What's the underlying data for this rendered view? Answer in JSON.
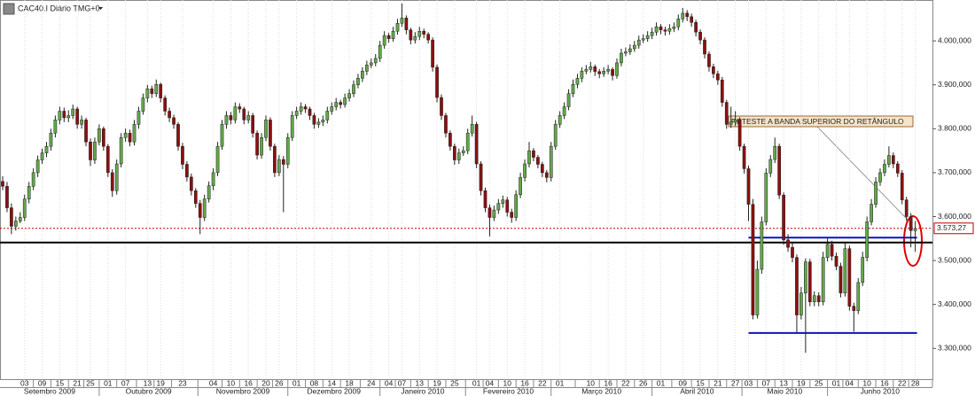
{
  "chart_data": {
    "type": "candlestick",
    "title": "CAC40.I Diário TMG+0",
    "colors": {
      "up": "#62a84a",
      "down": "#8b1010",
      "wick": "#222222"
    },
    "grid": true,
    "ylim": [
      3230,
      4093
    ],
    "yticks": [
      {
        "value": 3300,
        "label": "3.300,000"
      },
      {
        "value": 3400,
        "label": "3.400,000"
      },
      {
        "value": 3500,
        "label": "3.500,000"
      },
      {
        "value": 3600,
        "label": "3.600,000"
      },
      {
        "value": 3700,
        "label": "3.700,000"
      },
      {
        "value": 3800,
        "label": "3.800,000"
      },
      {
        "value": 3900,
        "label": "3.900,000"
      },
      {
        "value": 4000,
        "label": "4.000,000"
      }
    ],
    "last_price": {
      "value": 3573.27,
      "label": "3.573,27"
    },
    "levels": [
      {
        "value": 3573.27,
        "color": "#c00000",
        "style": "dotted",
        "extent": "full"
      },
      {
        "value": 3541,
        "color": "#000000",
        "style": "solid",
        "extent": "full"
      },
      {
        "value": 3552,
        "color": "#1010c0",
        "style": "solid",
        "extent": "box"
      },
      {
        "value": 3335,
        "color": "#1010c0",
        "style": "solid",
        "extent": "box"
      }
    ],
    "annotation": "RETESTE A BANDA SUPERIOR DO RETÂNGULO",
    "months": [
      "Setembro 2009",
      "Outubro 2009",
      "Novembro 2009",
      "Dezembro 2009",
      "Janeiro 2010",
      "Fevereiro 2010",
      "Março 2010",
      "Abril 2010",
      "Maio 2010",
      "Junho 2010"
    ],
    "categories": [
      null,
      null,
      null,
      null,
      null,
      "03",
      null,
      null,
      null,
      "09",
      null,
      null,
      null,
      "15",
      null,
      null,
      null,
      "21",
      null,
      null,
      "25",
      null,
      null,
      null,
      "01",
      null,
      null,
      null,
      "07",
      null,
      null,
      null,
      null,
      "13",
      null,
      null,
      "19",
      null,
      null,
      null,
      null,
      "23",
      null,
      null,
      null,
      null,
      null,
      null,
      "04",
      null,
      null,
      null,
      "10",
      null,
      null,
      null,
      "16",
      null,
      null,
      null,
      "20",
      null,
      null,
      "26",
      null,
      null,
      null,
      "01",
      null,
      null,
      null,
      "08",
      null,
      null,
      null,
      "14",
      null,
      null,
      null,
      "18",
      null,
      null,
      null,
      null,
      "24",
      null,
      null,
      null,
      "04",
      null,
      null,
      "07",
      null,
      null,
      null,
      "13",
      null,
      null,
      null,
      "19",
      null,
      null,
      null,
      "25",
      null,
      null,
      null,
      null,
      "01",
      null,
      null,
      "04",
      null,
      null,
      null,
      "10",
      null,
      null,
      null,
      "16",
      null,
      null,
      null,
      "22",
      null,
      null,
      null,
      "01",
      null,
      null,
      null,
      null,
      null,
      null,
      "10",
      null,
      null,
      null,
      "16",
      null,
      null,
      null,
      "22",
      null,
      null,
      null,
      "26",
      null,
      null,
      null,
      "01",
      null,
      null,
      null,
      null,
      "09",
      null,
      null,
      null,
      "15",
      null,
      null,
      null,
      "21",
      null,
      null,
      null,
      "27",
      null,
      null,
      "03",
      null,
      null,
      null,
      "07",
      null,
      null,
      null,
      "13",
      null,
      null,
      null,
      "19",
      null,
      null,
      null,
      "25",
      null,
      null,
      null,
      "01",
      null,
      null,
      "04",
      null,
      null,
      null,
      "10",
      null,
      null,
      null,
      "16",
      null,
      null,
      null,
      "22",
      null,
      null,
      "28"
    ],
    "ohlc": [
      [
        3680,
        3692,
        3660,
        3669
      ],
      [
        3669,
        3679,
        3610,
        3620
      ],
      [
        3620,
        3630,
        3560,
        3578
      ],
      [
        3578,
        3600,
        3568,
        3590
      ],
      [
        3590,
        3610,
        3585,
        3598
      ],
      [
        3598,
        3650,
        3590,
        3640
      ],
      [
        3640,
        3679,
        3630,
        3669
      ],
      [
        3669,
        3710,
        3660,
        3700
      ],
      [
        3700,
        3739,
        3690,
        3729
      ],
      [
        3729,
        3755,
        3720,
        3745
      ],
      [
        3745,
        3770,
        3735,
        3760
      ],
      [
        3760,
        3800,
        3750,
        3790
      ],
      [
        3790,
        3830,
        3780,
        3820
      ],
      [
        3820,
        3850,
        3810,
        3840
      ],
      [
        3840,
        3848,
        3815,
        3825
      ],
      [
        3825,
        3842,
        3815,
        3830
      ],
      [
        3830,
        3855,
        3822,
        3845
      ],
      [
        3845,
        3850,
        3800,
        3810
      ],
      [
        3810,
        3830,
        3800,
        3820
      ],
      [
        3820,
        3825,
        3760,
        3770
      ],
      [
        3770,
        3778,
        3715,
        3729
      ],
      [
        3729,
        3780,
        3720,
        3770
      ],
      [
        3770,
        3810,
        3762,
        3800
      ],
      [
        3800,
        3805,
        3750,
        3760
      ],
      [
        3760,
        3765,
        3690,
        3700
      ],
      [
        3700,
        3708,
        3645,
        3659
      ],
      [
        3659,
        3730,
        3650,
        3720
      ],
      [
        3720,
        3790,
        3712,
        3780
      ],
      [
        3780,
        3800,
        3770,
        3790
      ],
      [
        3790,
        3798,
        3760,
        3770
      ],
      [
        3770,
        3820,
        3762,
        3810
      ],
      [
        3810,
        3850,
        3800,
        3840
      ],
      [
        3840,
        3880,
        3832,
        3870
      ],
      [
        3870,
        3900,
        3860,
        3891
      ],
      [
        3891,
        3898,
        3870,
        3880
      ],
      [
        3880,
        3912,
        3872,
        3901
      ],
      [
        3901,
        3905,
        3860,
        3870
      ],
      [
        3870,
        3876,
        3830,
        3840
      ],
      [
        3840,
        3848,
        3815,
        3825
      ],
      [
        3825,
        3832,
        3800,
        3810
      ],
      [
        3810,
        3815,
        3750,
        3760
      ],
      [
        3760,
        3768,
        3708,
        3719
      ],
      [
        3719,
        3726,
        3680,
        3690
      ],
      [
        3690,
        3698,
        3648,
        3659
      ],
      [
        3659,
        3665,
        3620,
        3630
      ],
      [
        3630,
        3638,
        3560,
        3598
      ],
      [
        3598,
        3650,
        3590,
        3640
      ],
      [
        3640,
        3680,
        3632,
        3670
      ],
      [
        3670,
        3710,
        3660,
        3700
      ],
      [
        3700,
        3770,
        3692,
        3760
      ],
      [
        3760,
        3820,
        3752,
        3810
      ],
      [
        3810,
        3840,
        3800,
        3830
      ],
      [
        3830,
        3838,
        3810,
        3820
      ],
      [
        3820,
        3860,
        3812,
        3850
      ],
      [
        3850,
        3858,
        3836,
        3845
      ],
      [
        3845,
        3850,
        3810,
        3820
      ],
      [
        3820,
        3840,
        3812,
        3830
      ],
      [
        3830,
        3836,
        3780,
        3790
      ],
      [
        3790,
        3796,
        3730,
        3740
      ],
      [
        3740,
        3790,
        3732,
        3780
      ],
      [
        3780,
        3830,
        3772,
        3820
      ],
      [
        3820,
        3826,
        3750,
        3760
      ],
      [
        3760,
        3766,
        3690,
        3700
      ],
      [
        3700,
        3740,
        3692,
        3730
      ],
      [
        3730,
        3738,
        3610,
        3719
      ],
      [
        3719,
        3790,
        3710,
        3780
      ],
      [
        3780,
        3840,
        3772,
        3830
      ],
      [
        3830,
        3850,
        3822,
        3840
      ],
      [
        3840,
        3860,
        3832,
        3850
      ],
      [
        3850,
        3856,
        3836,
        3845
      ],
      [
        3845,
        3850,
        3820,
        3830
      ],
      [
        3830,
        3836,
        3800,
        3810
      ],
      [
        3810,
        3824,
        3802,
        3815
      ],
      [
        3815,
        3830,
        3806,
        3820
      ],
      [
        3820,
        3850,
        3812,
        3840
      ],
      [
        3840,
        3860,
        3832,
        3850
      ],
      [
        3850,
        3870,
        3842,
        3860
      ],
      [
        3860,
        3866,
        3846,
        3855
      ],
      [
        3855,
        3880,
        3848,
        3870
      ],
      [
        3870,
        3890,
        3862,
        3880
      ],
      [
        3880,
        3910,
        3872,
        3900
      ],
      [
        3900,
        3925,
        3892,
        3915
      ],
      [
        3915,
        3940,
        3906,
        3931
      ],
      [
        3931,
        3955,
        3922,
        3945
      ],
      [
        3945,
        3960,
        3938,
        3950
      ],
      [
        3950,
        3970,
        3942,
        3960
      ],
      [
        3960,
        4000,
        3952,
        3990
      ],
      [
        3990,
        4022,
        3982,
        4012
      ],
      [
        4012,
        4018,
        3996,
        4005
      ],
      [
        4005,
        4032,
        3998,
        4022
      ],
      [
        4022,
        4050,
        4014,
        4040
      ],
      [
        4040,
        4085,
        4032,
        4052
      ],
      [
        4052,
        4058,
        4015,
        4025
      ],
      [
        4025,
        4030,
        3992,
        4002
      ],
      [
        4002,
        4020,
        3994,
        4010
      ],
      [
        4010,
        4032,
        4002,
        4022
      ],
      [
        4022,
        4028,
        4006,
        4015
      ],
      [
        4015,
        4020,
        3994,
        4002
      ],
      [
        4002,
        4008,
        3930,
        3940
      ],
      [
        3940,
        3946,
        3860,
        3871
      ],
      [
        3871,
        3878,
        3820,
        3830
      ],
      [
        3830,
        3836,
        3780,
        3790
      ],
      [
        3790,
        3796,
        3750,
        3760
      ],
      [
        3760,
        3766,
        3718,
        3729
      ],
      [
        3729,
        3755,
        3720,
        3745
      ],
      [
        3745,
        3760,
        3738,
        3750
      ],
      [
        3750,
        3800,
        3742,
        3790
      ],
      [
        3790,
        3830,
        3782,
        3810
      ],
      [
        3810,
        3816,
        3710,
        3720
      ],
      [
        3720,
        3726,
        3648,
        3659
      ],
      [
        3659,
        3666,
        3610,
        3620
      ],
      [
        3620,
        3628,
        3555,
        3598
      ],
      [
        3598,
        3625,
        3590,
        3615
      ],
      [
        3615,
        3640,
        3606,
        3630
      ],
      [
        3630,
        3648,
        3620,
        3638
      ],
      [
        3638,
        3645,
        3600,
        3610
      ],
      [
        3610,
        3618,
        3586,
        3598
      ],
      [
        3598,
        3660,
        3590,
        3650
      ],
      [
        3650,
        3700,
        3642,
        3689
      ],
      [
        3689,
        3730,
        3680,
        3720
      ],
      [
        3720,
        3770,
        3712,
        3750
      ],
      [
        3750,
        3756,
        3726,
        3735
      ],
      [
        3735,
        3740,
        3710,
        3719
      ],
      [
        3719,
        3725,
        3690,
        3700
      ],
      [
        3700,
        3706,
        3678,
        3689
      ],
      [
        3689,
        3770,
        3680,
        3760
      ],
      [
        3760,
        3820,
        3752,
        3810
      ],
      [
        3810,
        3840,
        3802,
        3830
      ],
      [
        3830,
        3860,
        3822,
        3850
      ],
      [
        3850,
        3890,
        3842,
        3880
      ],
      [
        3880,
        3912,
        3872,
        3901
      ],
      [
        3901,
        3925,
        3892,
        3915
      ],
      [
        3915,
        3940,
        3906,
        3931
      ],
      [
        3931,
        3945,
        3924,
        3935
      ],
      [
        3935,
        3952,
        3928,
        3941
      ],
      [
        3941,
        3946,
        3920,
        3930
      ],
      [
        3930,
        3936,
        3915,
        3925
      ],
      [
        3925,
        3940,
        3918,
        3931
      ],
      [
        3931,
        3945,
        3924,
        3935
      ],
      [
        3935,
        3940,
        3910,
        3921
      ],
      [
        3921,
        3960,
        3914,
        3950
      ],
      [
        3950,
        3982,
        3942,
        3972
      ],
      [
        3972,
        3985,
        3965,
        3975
      ],
      [
        3975,
        3992,
        3968,
        3982
      ],
      [
        3982,
        4000,
        3975,
        3990
      ],
      [
        3990,
        4012,
        3982,
        4002
      ],
      [
        4002,
        4015,
        3995,
        4005
      ],
      [
        4005,
        4022,
        3998,
        4012
      ],
      [
        4012,
        4030,
        4004,
        4020
      ],
      [
        4020,
        4042,
        4012,
        4032
      ],
      [
        4032,
        4038,
        4015,
        4025
      ],
      [
        4025,
        4032,
        4012,
        4022
      ],
      [
        4022,
        4038,
        4014,
        4028
      ],
      [
        4028,
        4042,
        4020,
        4032
      ],
      [
        4032,
        4060,
        4024,
        4050
      ],
      [
        4050,
        4075,
        4042,
        4063
      ],
      [
        4063,
        4070,
        4045,
        4055
      ],
      [
        4055,
        4062,
        4032,
        4042
      ],
      [
        4042,
        4048,
        4010,
        4020
      ],
      [
        4020,
        4026,
        3992,
        4002
      ],
      [
        4002,
        4008,
        3960,
        3970
      ],
      [
        3970,
        3976,
        3930,
        3941
      ],
      [
        3941,
        3948,
        3915,
        3925
      ],
      [
        3925,
        3932,
        3900,
        3911
      ],
      [
        3911,
        3918,
        3850,
        3860
      ],
      [
        3860,
        3866,
        3800,
        3810
      ],
      [
        3810,
        3850,
        3802,
        3815
      ],
      [
        3815,
        3840,
        3806,
        3820
      ],
      [
        3820,
        3826,
        3750,
        3760
      ],
      [
        3760,
        3766,
        3698,
        3709
      ],
      [
        3709,
        3716,
        3590,
        3628
      ],
      [
        3628,
        3640,
        3366,
        3376
      ],
      [
        3376,
        3500,
        3368,
        3480
      ],
      [
        3480,
        3600,
        3470,
        3588
      ],
      [
        3588,
        3710,
        3580,
        3699
      ],
      [
        3699,
        3740,
        3690,
        3730
      ],
      [
        3730,
        3780,
        3722,
        3760
      ],
      [
        3760,
        3766,
        3640,
        3649
      ],
      [
        3649,
        3655,
        3536,
        3547
      ],
      [
        3547,
        3560,
        3520,
        3530
      ],
      [
        3530,
        3540,
        3496,
        3507
      ],
      [
        3507,
        3514,
        3336,
        3376
      ],
      [
        3376,
        3440,
        3366,
        3426
      ],
      [
        3426,
        3505,
        3290,
        3497
      ],
      [
        3497,
        3504,
        3396,
        3406
      ],
      [
        3406,
        3430,
        3396,
        3420
      ],
      [
        3420,
        3428,
        3396,
        3406
      ],
      [
        3406,
        3520,
        3398,
        3507
      ],
      [
        3507,
        3550,
        3498,
        3537
      ],
      [
        3537,
        3545,
        3500,
        3510
      ],
      [
        3510,
        3518,
        3478,
        3487
      ],
      [
        3487,
        3495,
        3416,
        3426
      ],
      [
        3426,
        3540,
        3418,
        3527
      ],
      [
        3527,
        3534,
        3386,
        3396
      ],
      [
        3396,
        3404,
        3338,
        3386
      ],
      [
        3386,
        3460,
        3378,
        3450
      ],
      [
        3450,
        3520,
        3442,
        3507
      ],
      [
        3507,
        3600,
        3498,
        3588
      ],
      [
        3588,
        3640,
        3580,
        3628
      ],
      [
        3628,
        3690,
        3620,
        3679
      ],
      [
        3679,
        3710,
        3670,
        3700
      ],
      [
        3700,
        3730,
        3692,
        3719
      ],
      [
        3719,
        3760,
        3712,
        3739
      ],
      [
        3739,
        3746,
        3710,
        3720
      ],
      [
        3720,
        3726,
        3690,
        3699
      ],
      [
        3699,
        3706,
        3628,
        3638
      ],
      [
        3638,
        3645,
        3590,
        3600
      ],
      [
        3600,
        3608,
        3530,
        3568
      ],
      [
        3568,
        3590,
        3520,
        3573
      ]
    ]
  }
}
